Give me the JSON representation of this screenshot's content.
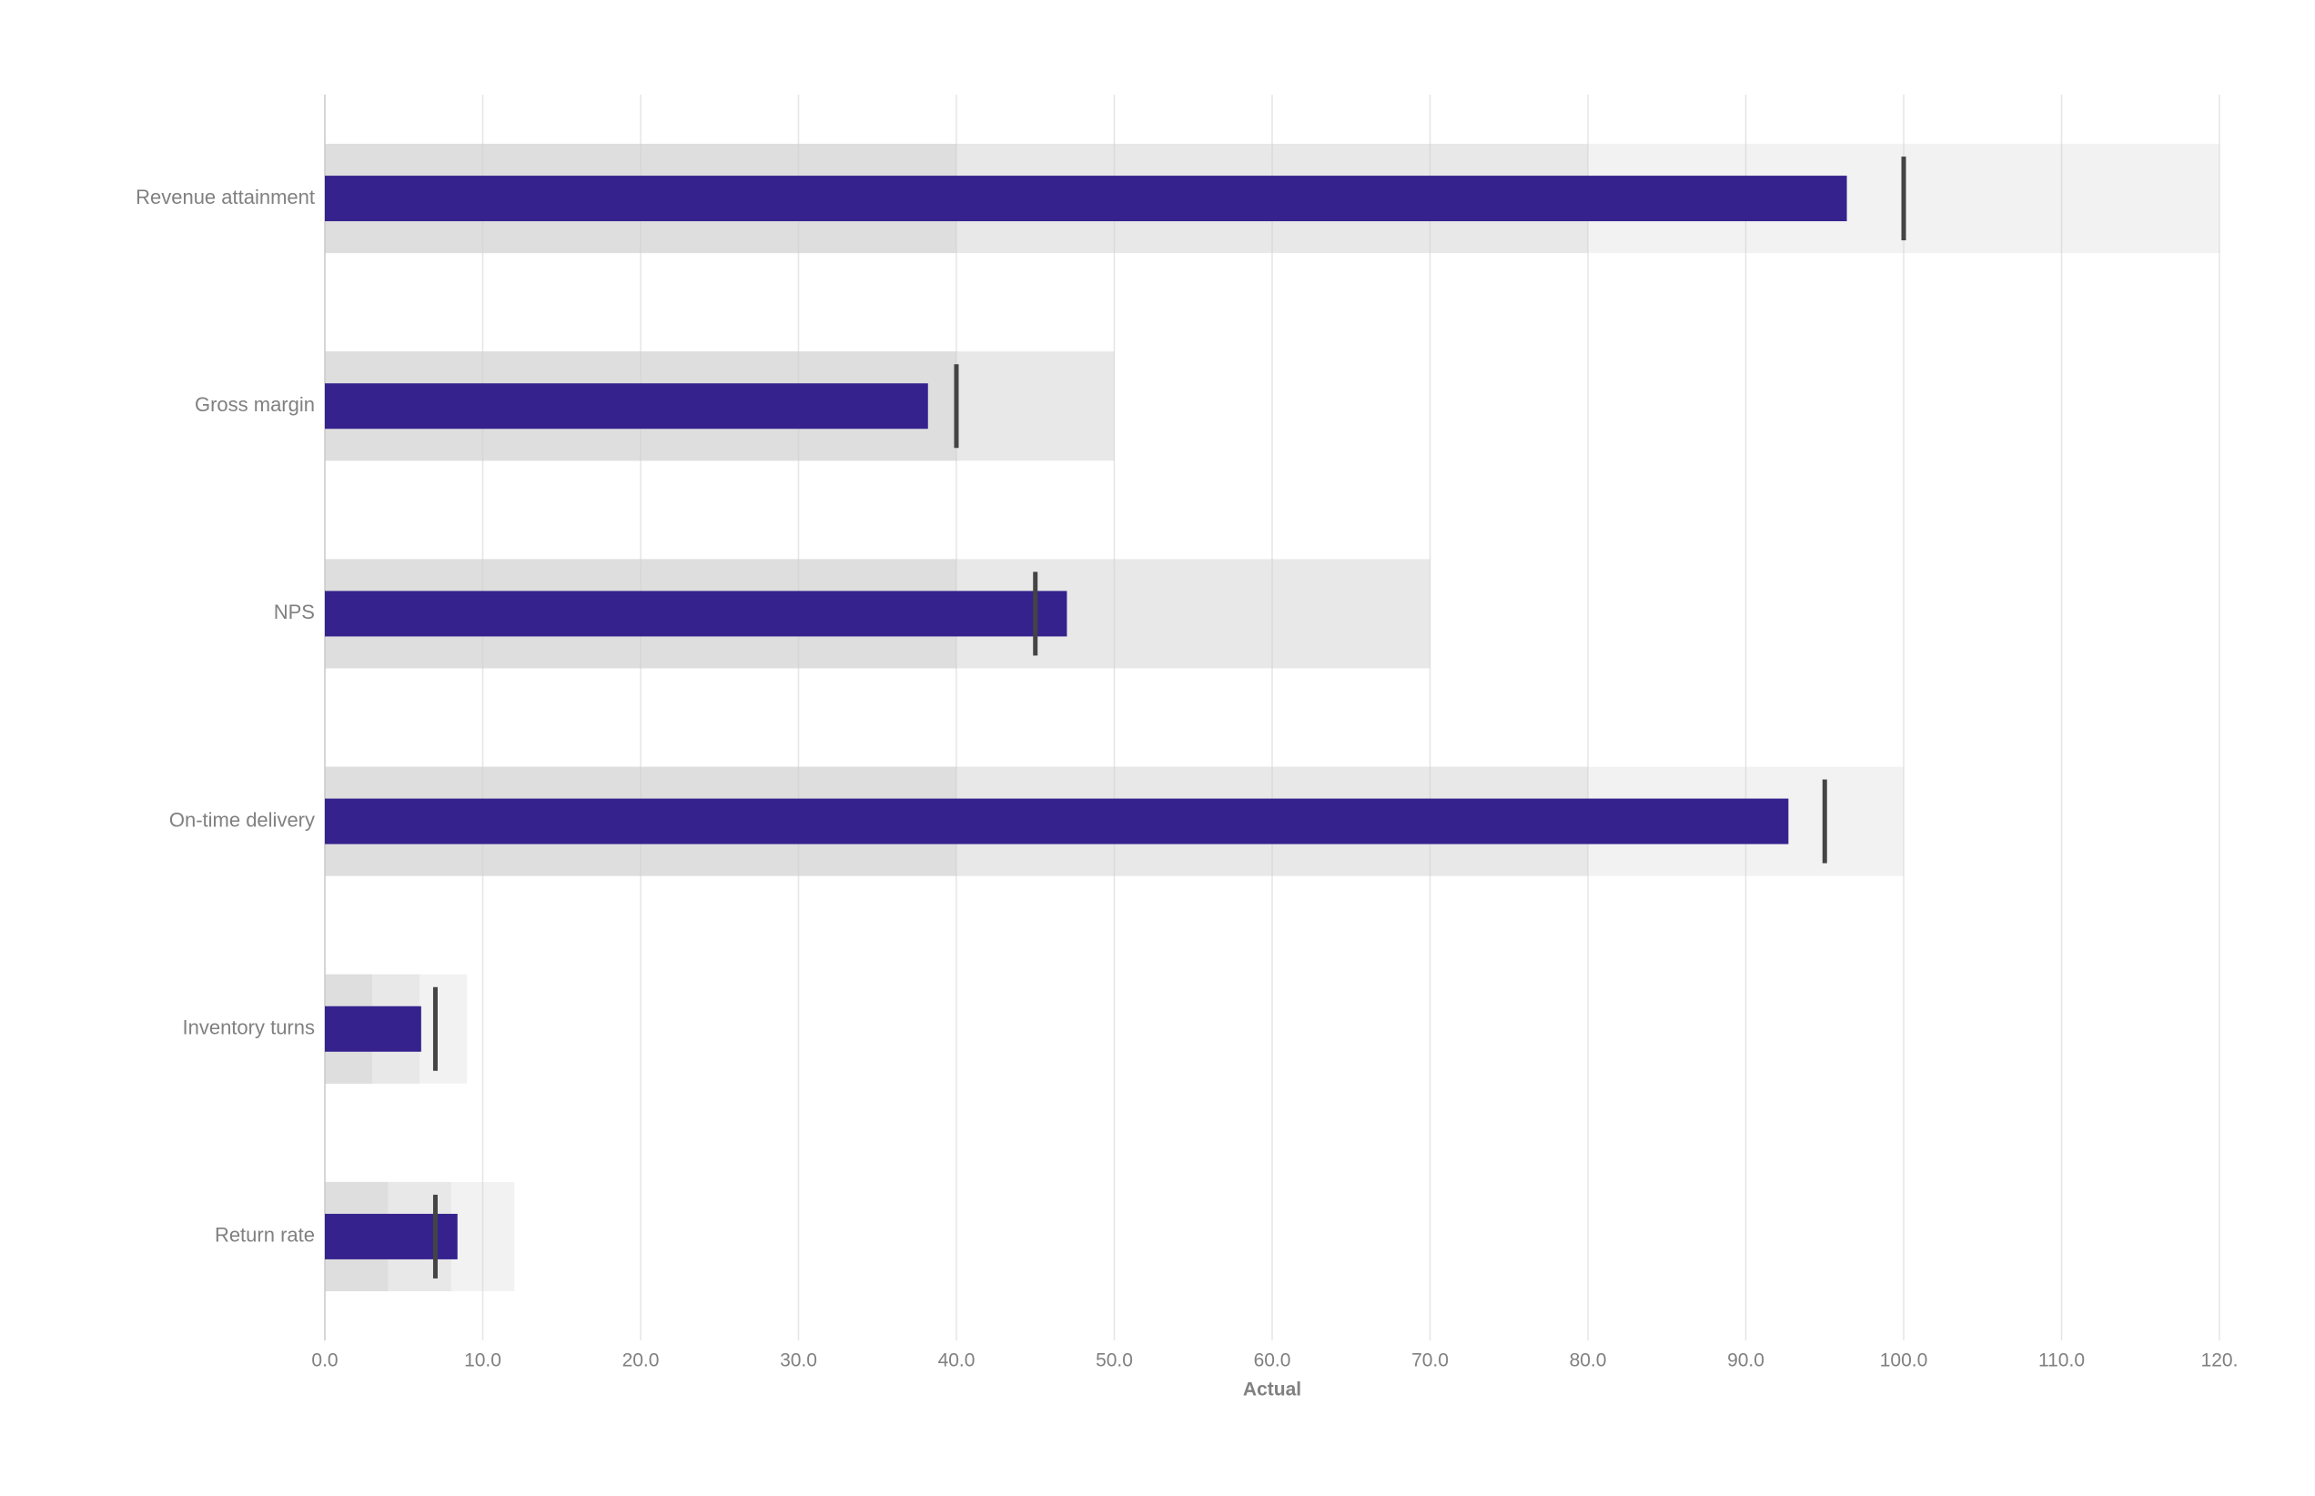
{
  "chart_data": {
    "type": "bullet",
    "categories": [
      "Revenue attainment",
      "Gross margin",
      "NPS",
      "On-time delivery",
      "Inventory turns",
      "Return rate"
    ],
    "values": [
      96.4,
      38.2,
      47,
      92.7,
      6.1,
      8.4
    ],
    "targets": [
      100,
      40,
      45,
      95,
      7,
      7
    ],
    "ranges": [
      [
        40,
        80,
        120
      ],
      [
        40,
        50
      ],
      [
        40,
        70
      ],
      [
        40,
        80,
        100
      ],
      [
        3,
        6,
        9
      ],
      [
        4,
        8,
        12
      ]
    ],
    "range_colors": [
      "#dedede",
      "#e8e8e8",
      "#f2f2f2"
    ],
    "color": "#35228d",
    "target_color": "#444444",
    "xlabel": "Actual",
    "xlim": [
      0,
      120
    ],
    "xticks": [
      {
        "value": 0,
        "label": "0.0"
      },
      {
        "value": 10,
        "label": "10.0"
      },
      {
        "value": 20,
        "label": "20.0"
      },
      {
        "value": 30,
        "label": "30.0"
      },
      {
        "value": 40,
        "label": "40.0"
      },
      {
        "value": 50,
        "label": "50.0"
      },
      {
        "value": 60,
        "label": "60.0"
      },
      {
        "value": 70,
        "label": "70.0"
      },
      {
        "value": 80,
        "label": "80.0"
      },
      {
        "value": 90,
        "label": "90.0"
      },
      {
        "value": 100,
        "label": "100.0"
      },
      {
        "value": 110,
        "label": "110.0"
      },
      {
        "value": 120,
        "label": "120."
      }
    ],
    "grid": true
  }
}
